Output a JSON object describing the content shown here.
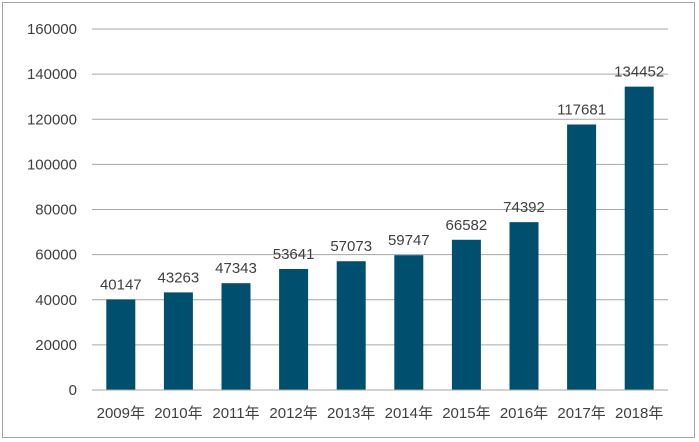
{
  "chart_data": {
    "type": "bar",
    "categories": [
      "2009年",
      "2010年",
      "2011年",
      "2012年",
      "2013年",
      "2014年",
      "2015年",
      "2016年",
      "2017年",
      "2018年"
    ],
    "values": [
      40147,
      43263,
      47343,
      53641,
      57073,
      59747,
      66582,
      74392,
      117681,
      134452
    ],
    "ylim": [
      0,
      160000
    ],
    "yticks": [
      0,
      20000,
      40000,
      60000,
      80000,
      100000,
      120000,
      140000,
      160000
    ],
    "grid": true,
    "bar_color": "#004f6e",
    "data_labels": true,
    "legend": "none"
  }
}
